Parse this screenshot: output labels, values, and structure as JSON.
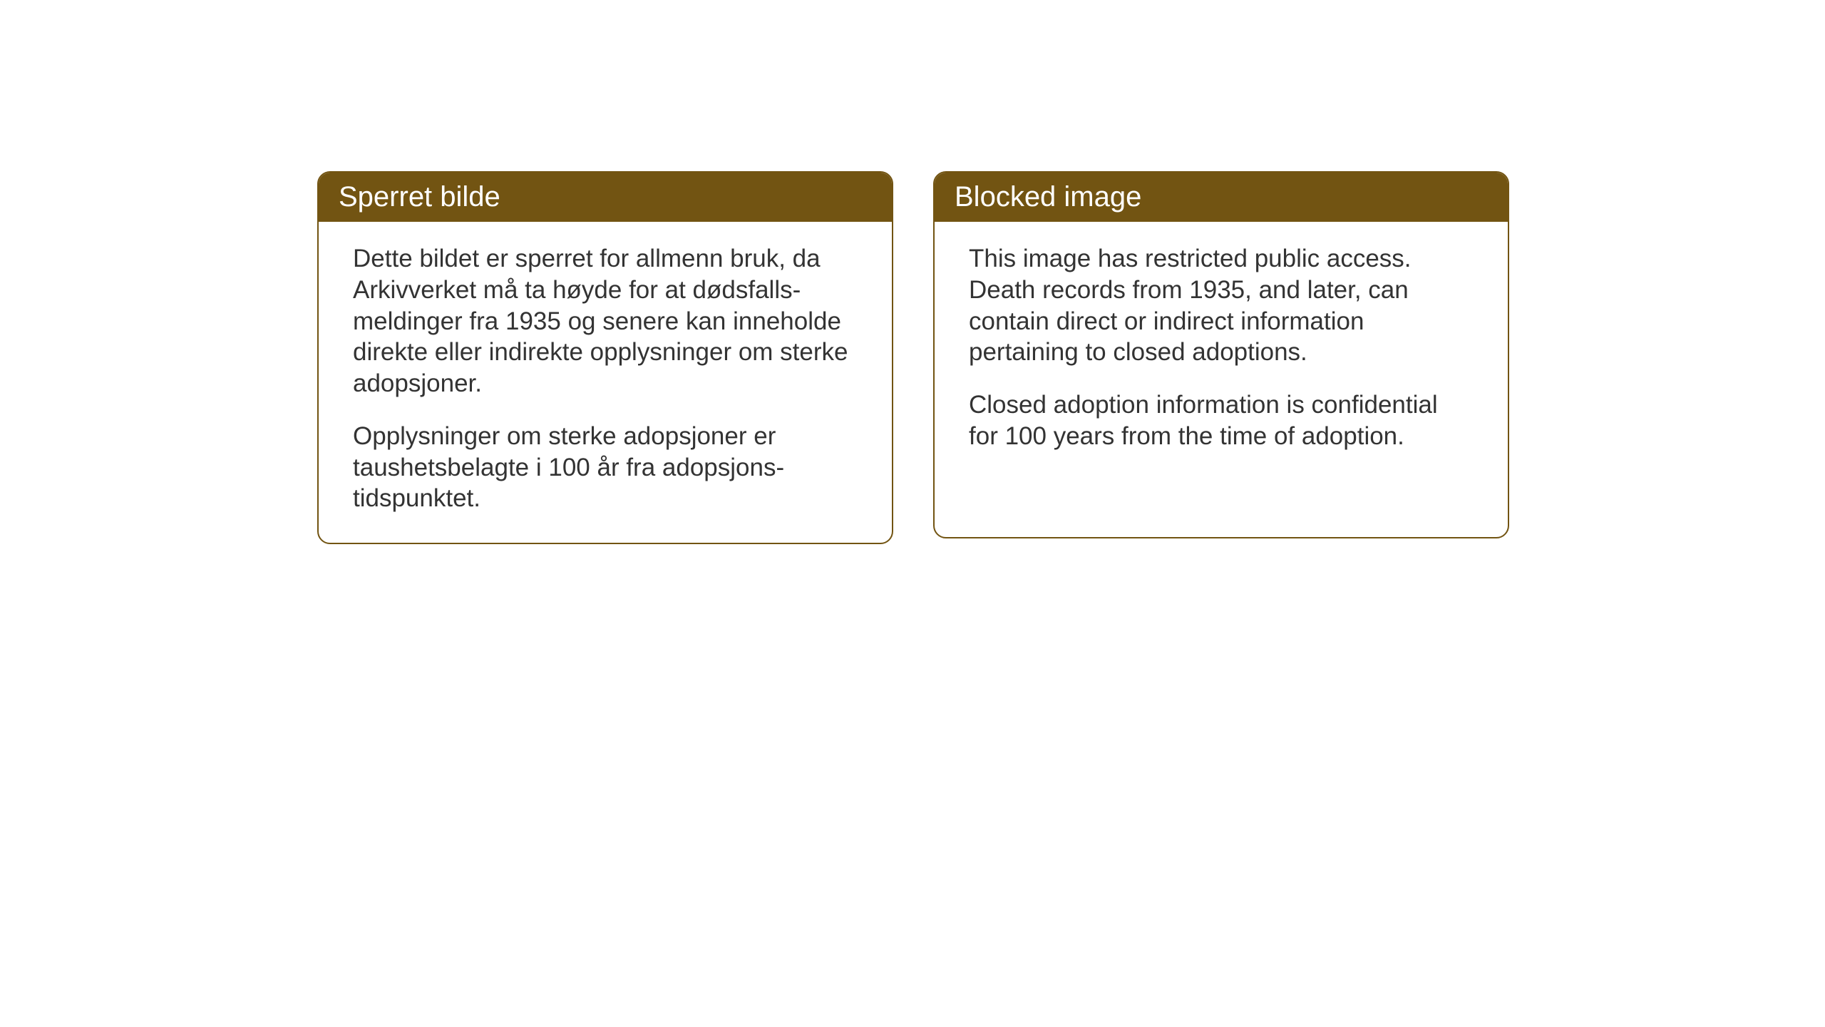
{
  "layout": {
    "background_color": "#ffffff",
    "card_border_color": "#725412",
    "card_header_bg": "#725412",
    "card_header_text_color": "#ffffff",
    "card_body_text_color": "#333333",
    "card_border_radius": 18,
    "header_fontsize": 40,
    "body_fontsize": 35
  },
  "cards": {
    "left": {
      "title": "Sperret bilde",
      "paragraph1": "Dette bildet er sperret for allmenn bruk, da Arkivverket må ta høyde for at dødsfalls-meldinger fra 1935 og senere kan inneholde direkte eller indirekte opplysninger om sterke adopsjoner.",
      "paragraph2": "Opplysninger om sterke adopsjoner er taushetsbelagte i 100 år fra adopsjons-tidspunktet."
    },
    "right": {
      "title": "Blocked image",
      "paragraph1": "This image has restricted public access. Death records from 1935, and later, can contain direct or indirect information pertaining to closed adoptions.",
      "paragraph2": "Closed adoption information is confidential for 100 years from the time of adoption."
    }
  }
}
